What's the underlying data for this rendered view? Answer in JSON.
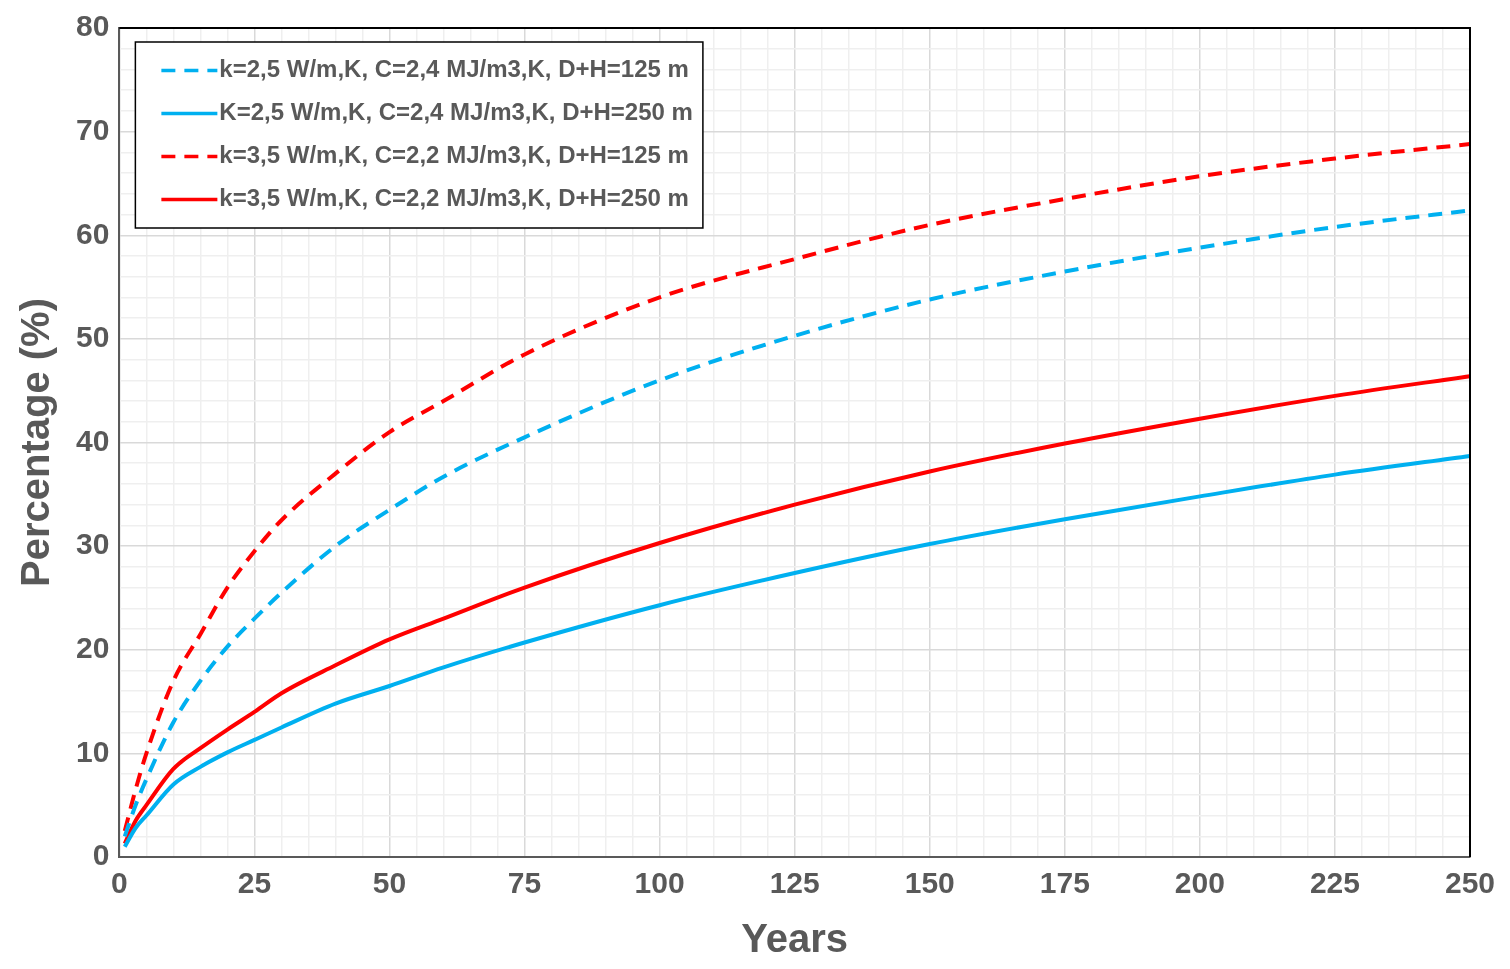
{
  "chart_data": {
    "type": "line",
    "xlabel": "Years",
    "ylabel": "Percentage (%)",
    "xlim": [
      0,
      250
    ],
    "ylim": [
      0,
      80
    ],
    "xticks": [
      0,
      {
        "value": 5,
        "label": null
      },
      {
        "value": 10,
        "label": null
      },
      {
        "value": 15,
        "label": null
      },
      {
        "value": 20,
        "label": null
      },
      25,
      {
        "value": 30,
        "label": null
      },
      {
        "value": 35,
        "label": null
      },
      {
        "value": 40,
        "label": null
      },
      {
        "value": 45,
        "label": null
      },
      50,
      {
        "value": 55,
        "label": null
      },
      {
        "value": 60,
        "label": null
      },
      {
        "value": 65,
        "label": null
      },
      {
        "value": 70,
        "label": null
      },
      75,
      {
        "value": 80,
        "label": null
      },
      {
        "value": 85,
        "label": null
      },
      {
        "value": 90,
        "label": null
      },
      {
        "value": 95,
        "label": null
      },
      100,
      {
        "value": 105,
        "label": null
      },
      {
        "value": 110,
        "label": null
      },
      {
        "value": 115,
        "label": null
      },
      {
        "value": 120,
        "label": null
      },
      125,
      {
        "value": 130,
        "label": null
      },
      {
        "value": 135,
        "label": null
      },
      {
        "value": 140,
        "label": null
      },
      {
        "value": 145,
        "label": null
      },
      150,
      {
        "value": 155,
        "label": null
      },
      {
        "value": 160,
        "label": null
      },
      {
        "value": 165,
        "label": null
      },
      {
        "value": 170,
        "label": null
      },
      175,
      {
        "value": 180,
        "label": null
      },
      {
        "value": 185,
        "label": null
      },
      {
        "value": 190,
        "label": null
      },
      {
        "value": 195,
        "label": null
      },
      200,
      {
        "value": 205,
        "label": null
      },
      {
        "value": 210,
        "label": null
      },
      {
        "value": 215,
        "label": null
      },
      {
        "value": 220,
        "label": null
      },
      225,
      {
        "value": 230,
        "label": null
      },
      {
        "value": 235,
        "label": null
      },
      {
        "value": 240,
        "label": null
      },
      {
        "value": 245,
        "label": null
      },
      250
    ],
    "yticks": [
      0,
      {
        "value": 2,
        "label": null
      },
      {
        "value": 4,
        "label": null
      },
      {
        "value": 6,
        "label": null
      },
      {
        "value": 8,
        "label": null
      },
      10,
      {
        "value": 12,
        "label": null
      },
      {
        "value": 14,
        "label": null
      },
      {
        "value": 16,
        "label": null
      },
      {
        "value": 18,
        "label": null
      },
      20,
      {
        "value": 22,
        "label": null
      },
      {
        "value": 24,
        "label": null
      },
      {
        "value": 26,
        "label": null
      },
      {
        "value": 28,
        "label": null
      },
      30,
      {
        "value": 32,
        "label": null
      },
      {
        "value": 34,
        "label": null
      },
      {
        "value": 36,
        "label": null
      },
      {
        "value": 38,
        "label": null
      },
      40,
      {
        "value": 42,
        "label": null
      },
      {
        "value": 44,
        "label": null
      },
      {
        "value": 46,
        "label": null
      },
      {
        "value": 48,
        "label": null
      },
      50,
      {
        "value": 52,
        "label": null
      },
      {
        "value": 54,
        "label": null
      },
      {
        "value": 56,
        "label": null
      },
      {
        "value": 58,
        "label": null
      },
      60,
      {
        "value": 62,
        "label": null
      },
      {
        "value": 64,
        "label": null
      },
      {
        "value": 66,
        "label": null
      },
      {
        "value": 68,
        "label": null
      },
      70,
      {
        "value": 72,
        "label": null
      },
      {
        "value": 74,
        "label": null
      },
      {
        "value": 76,
        "label": null
      },
      {
        "value": 78,
        "label": null
      },
      80
    ],
    "grid": true,
    "legend": "top left",
    "marker": "none",
    "x": [
      1,
      3,
      5,
      10,
      15,
      20,
      25,
      30,
      40,
      50,
      60,
      75,
      100,
      125,
      150,
      175,
      200,
      225,
      250
    ],
    "series": [
      {
        "name": "k=2,5 W/m,K, C=2,4 MJ/m3,K, D+H=125 m",
        "color": "#00b0f0",
        "line_style": "dashed",
        "values": [
          2,
          5,
          7.5,
          13,
          17,
          20.3,
          23,
          25.5,
          30,
          33.5,
          36.7,
          40.5,
          46,
          50.3,
          53.8,
          56.5,
          58.8,
          60.8,
          62.4
        ]
      },
      {
        "name": "K=2,5 W/m,K, C=2,4 MJ/m3,K, D+H=250 m",
        "color": "#00b0f0",
        "line_style": "solid",
        "values": [
          1,
          2.8,
          4,
          7,
          8.7,
          10.1,
          11.3,
          12.5,
          14.8,
          16.5,
          18.3,
          20.7,
          24.3,
          27.4,
          30.2,
          32.6,
          34.8,
          36.9,
          38.7
        ]
      },
      {
        "name": "k=3,5 W/m,K, C=2,2 MJ/m3,K, D+H=125 m",
        "color": "#ff0000",
        "line_style": "dashed",
        "values": [
          2.5,
          6.5,
          10,
          17,
          21.5,
          26,
          29.5,
          32.5,
          37,
          41,
          44,
          48.5,
          54,
          57.7,
          61,
          63.5,
          65.7,
          67.4,
          68.8
        ]
      },
      {
        "name": "k=3,5 W/m,K, C=2,2 MJ/m3,K, D+H=250 m",
        "color": "#ff0000",
        "line_style": "solid",
        "values": [
          1.3,
          3.5,
          5,
          8.5,
          10.5,
          12.3,
          14,
          15.8,
          18.5,
          21,
          23,
          26,
          30.3,
          34,
          37.2,
          39.9,
          42.3,
          44.5,
          46.4
        ]
      }
    ]
  }
}
